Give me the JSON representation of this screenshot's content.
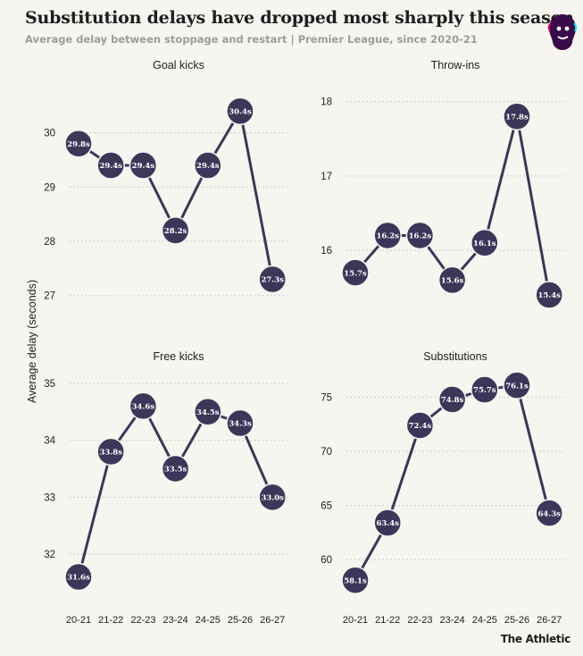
{
  "header": {
    "title": "Substitution delays have dropped most sharply this season",
    "subtitle": "Average delay between stoppage and restart | Premier League, since 2020-21"
  },
  "brand": "The Athletic",
  "colors": {
    "marker": "#3c3759",
    "grid": "#bdbdbd",
    "text": "#1d1d1f",
    "muted": "#9c9c9c",
    "background": "#f7f5f0"
  },
  "chart_data": {
    "ylabel": "Average delay (seconds)",
    "charts": [
      {
        "type": "line",
        "title": "Goal kicks",
        "categories": [
          "20-21",
          "21-22",
          "22-23",
          "23-24",
          "24-25",
          "25-26",
          "26-27"
        ],
        "values": [
          29.8,
          29.4,
          29.4,
          28.2,
          29.4,
          30.4,
          27.3
        ],
        "labels": [
          "29.8s",
          "29.4s",
          "29.4s",
          "28.2s",
          "29.4s",
          "30.4s",
          "27.3s"
        ],
        "yticks": [
          27,
          28,
          29,
          30
        ],
        "ytick_labels": [
          "27",
          "28",
          "29",
          "30"
        ],
        "ylim": [
          26.6,
          30.85
        ],
        "grid": true
      },
      {
        "type": "line",
        "title": "Throw-ins",
        "categories": [
          "20-21",
          "21-22",
          "22-23",
          "23-24",
          "24-25",
          "25-26",
          "26-27"
        ],
        "values": [
          15.7,
          16.2,
          16.2,
          15.6,
          16.1,
          17.8,
          15.4
        ],
        "labels": [
          "15.7s",
          "16.2s",
          "16.2s",
          "15.6s",
          "16.1s",
          "17.8s",
          "15.4s"
        ],
        "yticks": [
          16,
          17,
          18
        ],
        "ytick_labels": [
          "16",
          "17",
          "18"
        ],
        "ylim": [
          15.1,
          18.2
        ],
        "grid": true
      },
      {
        "type": "line",
        "title": "Free kicks",
        "categories": [
          "20-21",
          "21-22",
          "22-23",
          "23-24",
          "24-25",
          "25-26",
          "26-27"
        ],
        "values": [
          31.6,
          33.8,
          34.6,
          33.5,
          34.5,
          34.3,
          33.0
        ],
        "labels": [
          "31.6s",
          "33.8s",
          "34.6s",
          "33.5s",
          "34.5s",
          "34.3s",
          "33.0s"
        ],
        "yticks": [
          32,
          33,
          34,
          35
        ],
        "ytick_labels": [
          "32",
          "33",
          "34",
          "35"
        ],
        "ylim": [
          31.2,
          35.25
        ],
        "grid": true
      },
      {
        "type": "line",
        "title": "Substitutions",
        "categories": [
          "20-21",
          "21-22",
          "22-23",
          "23-24",
          "24-25",
          "25-26",
          "26-27"
        ],
        "values": [
          58.1,
          63.4,
          72.4,
          74.8,
          75.7,
          76.1,
          64.3
        ],
        "labels": [
          "58.1s",
          "63.4s",
          "72.4s",
          "74.8s",
          "75.7s",
          "76.1s",
          "64.3s"
        ],
        "yticks": [
          60,
          65,
          70,
          75
        ],
        "ytick_labels": [
          "60",
          "65",
          "70",
          "75"
        ],
        "ylim": [
          56.3,
          77.6
        ],
        "grid": true
      }
    ]
  }
}
